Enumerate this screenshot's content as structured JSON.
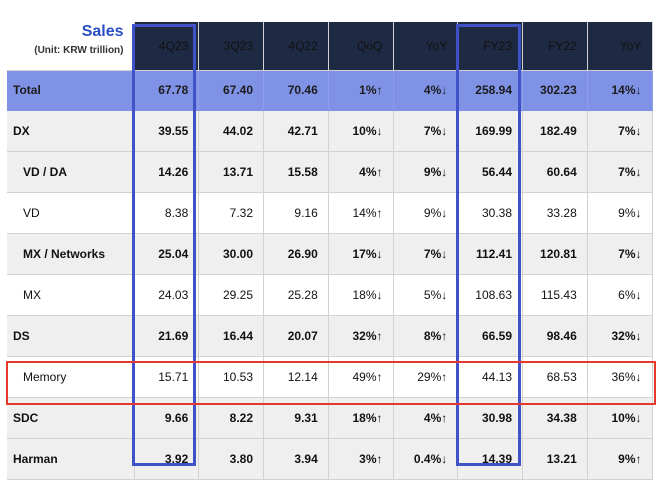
{
  "title": "Sales",
  "unit": "(Unit: KRW trillion)",
  "columns": [
    "4Q23",
    "3Q23",
    "4Q22",
    "QoQ",
    "YoY",
    "FY23",
    "FY22",
    "YoY"
  ],
  "rows": [
    {
      "label": "Total",
      "values": [
        "67.78",
        "67.40",
        "70.46",
        "1%↑",
        "4%↓",
        "258.94",
        "302.23",
        "14%↓"
      ]
    },
    {
      "label": "DX",
      "values": [
        "39.55",
        "44.02",
        "42.71",
        "10%↓",
        "7%↓",
        "169.99",
        "182.49",
        "7%↓"
      ]
    },
    {
      "label": "VD / DA",
      "values": [
        "14.26",
        "13.71",
        "15.58",
        "4%↑",
        "9%↓",
        "56.44",
        "60.64",
        "7%↓"
      ]
    },
    {
      "label": "VD",
      "values": [
        "8.38",
        "7.32",
        "9.16",
        "14%↑",
        "9%↓",
        "30.38",
        "33.28",
        "9%↓"
      ]
    },
    {
      "label": "MX / Networks",
      "values": [
        "25.04",
        "30.00",
        "26.90",
        "17%↓",
        "7%↓",
        "112.41",
        "120.81",
        "7%↓"
      ]
    },
    {
      "label": "MX",
      "values": [
        "24.03",
        "29.25",
        "25.28",
        "18%↓",
        "5%↓",
        "108.63",
        "115.43",
        "6%↓"
      ]
    },
    {
      "label": "DS",
      "values": [
        "21.69",
        "16.44",
        "20.07",
        "32%↑",
        "8%↑",
        "66.59",
        "98.46",
        "32%↓"
      ]
    },
    {
      "label": "Memory",
      "values": [
        "15.71",
        "10.53",
        "12.14",
        "49%↑",
        "29%↑",
        "44.13",
        "68.53",
        "36%↓"
      ]
    },
    {
      "label": "SDC",
      "values": [
        "9.66",
        "8.22",
        "9.31",
        "18%↑",
        "4%↑",
        "30.98",
        "34.38",
        "10%↓"
      ]
    },
    {
      "label": "Harman",
      "values": [
        "3.92",
        "3.80",
        "3.94",
        "3%↑",
        "0.4%↓",
        "14.39",
        "13.21",
        "9%↑"
      ]
    }
  ],
  "colors": {
    "header_bg": "#1e2a43",
    "total_row_bg": "#7f92e6",
    "change_text": "#3c4fd0",
    "highlight_column_box": "#4052c7",
    "highlight_row_box": "#e43a2e",
    "title_text": "#2b4ec7"
  }
}
